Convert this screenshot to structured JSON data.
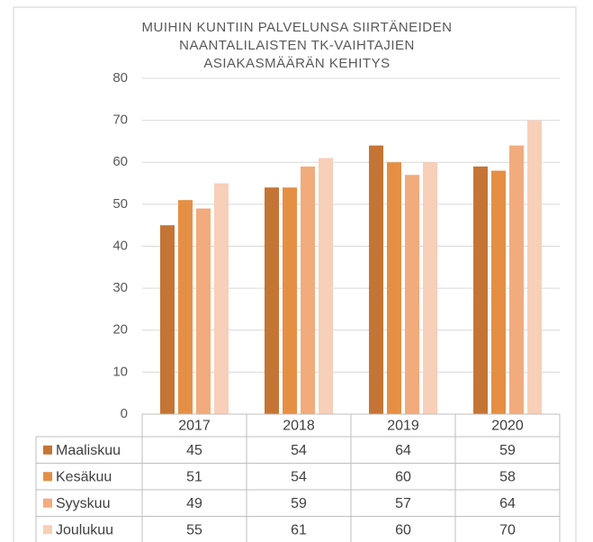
{
  "chart_data": {
    "type": "bar",
    "title": [
      "MUIHIN KUNTIIN PALVELUNSA SIIRTÄNEIDEN",
      "NAANTALILAISTEN TK-VAIHTAJIEN",
      "ASIAKASMÄÄRÄN KEHITYS"
    ],
    "categories": [
      "2017",
      "2018",
      "2019",
      "2020"
    ],
    "series": [
      {
        "name": "Maaliskuu",
        "color": "#c47535",
        "values": [
          45,
          54,
          64,
          59
        ]
      },
      {
        "name": "Kesäkuu",
        "color": "#e58f45",
        "values": [
          51,
          54,
          60,
          58
        ]
      },
      {
        "name": "Syyskuu",
        "color": "#f2ab7c",
        "values": [
          49,
          59,
          57,
          64
        ]
      },
      {
        "name": "Joulukuu",
        "color": "#f8cfb8",
        "values": [
          55,
          61,
          60,
          70
        ]
      }
    ],
    "ylim": [
      0,
      80
    ],
    "yticks": [
      0,
      10,
      20,
      30,
      40,
      50,
      60,
      70,
      80
    ],
    "grid": true,
    "data_table": true
  }
}
